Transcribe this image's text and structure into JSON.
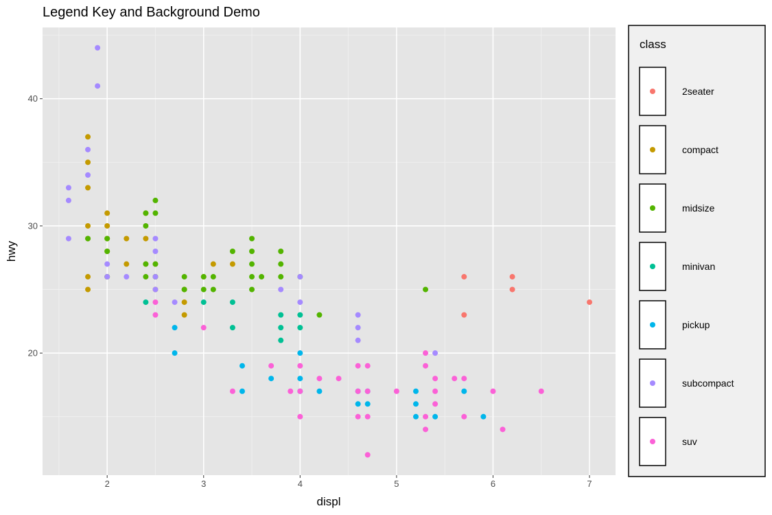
{
  "chart_data": {
    "type": "scatter",
    "title": "Legend Key and Background Demo",
    "xlabel": "displ",
    "ylabel": "hwy",
    "xlim": [
      1.33,
      7.27
    ],
    "ylim": [
      10.4,
      45.6
    ],
    "x_ticks": [
      2,
      3,
      4,
      5,
      6,
      7
    ],
    "y_ticks": [
      20,
      30,
      40
    ],
    "grid": true,
    "legend": {
      "title": "class",
      "position": "right"
    },
    "series": [
      {
        "name": "2seater",
        "color": "#F8766D",
        "points": [
          [
            5.7,
            26
          ],
          [
            5.7,
            23
          ],
          [
            6.2,
            26
          ],
          [
            6.2,
            25
          ],
          [
            7.0,
            24
          ]
        ]
      },
      {
        "name": "compact",
        "color": "#C49A00",
        "points": [
          [
            1.8,
            37
          ],
          [
            1.8,
            35
          ],
          [
            1.8,
            33
          ],
          [
            1.8,
            30
          ],
          [
            1.8,
            29
          ],
          [
            1.8,
            26
          ],
          [
            1.8,
            25
          ],
          [
            2.0,
            31
          ],
          [
            2.0,
            30
          ],
          [
            2.0,
            29
          ],
          [
            2.0,
            28
          ],
          [
            2.0,
            26
          ],
          [
            2.2,
            29
          ],
          [
            2.2,
            27
          ],
          [
            2.4,
            31
          ],
          [
            2.4,
            29
          ],
          [
            2.4,
            27
          ],
          [
            2.5,
            27
          ],
          [
            2.5,
            26
          ],
          [
            2.5,
            25
          ],
          [
            2.8,
            25
          ],
          [
            2.8,
            24
          ],
          [
            2.8,
            23
          ],
          [
            3.0,
            26
          ],
          [
            3.1,
            27
          ],
          [
            3.3,
            27
          ]
        ]
      },
      {
        "name": "midsize",
        "color": "#53B400",
        "points": [
          [
            1.8,
            29
          ],
          [
            2.0,
            29
          ],
          [
            2.0,
            28
          ],
          [
            2.0,
            26
          ],
          [
            2.4,
            31
          ],
          [
            2.4,
            30
          ],
          [
            2.4,
            27
          ],
          [
            2.4,
            26
          ],
          [
            2.5,
            32
          ],
          [
            2.5,
            31
          ],
          [
            2.5,
            27
          ],
          [
            2.5,
            26
          ],
          [
            2.8,
            26
          ],
          [
            2.8,
            25
          ],
          [
            3.0,
            26
          ],
          [
            3.0,
            25
          ],
          [
            3.1,
            26
          ],
          [
            3.1,
            25
          ],
          [
            3.3,
            28
          ],
          [
            3.5,
            29
          ],
          [
            3.5,
            28
          ],
          [
            3.5,
            27
          ],
          [
            3.5,
            26
          ],
          [
            3.5,
            25
          ],
          [
            3.6,
            26
          ],
          [
            3.8,
            28
          ],
          [
            3.8,
            27
          ],
          [
            3.8,
            26
          ],
          [
            4.0,
            26
          ],
          [
            4.2,
            23
          ],
          [
            5.3,
            25
          ]
        ]
      },
      {
        "name": "minivan",
        "color": "#00C094",
        "points": [
          [
            2.4,
            24
          ],
          [
            3.0,
            24
          ],
          [
            3.3,
            24
          ],
          [
            3.3,
            22
          ],
          [
            3.8,
            23
          ],
          [
            3.8,
            22
          ],
          [
            3.8,
            21
          ],
          [
            4.0,
            23
          ],
          [
            4.0,
            22
          ]
        ]
      },
      {
        "name": "pickup",
        "color": "#00B6EB",
        "points": [
          [
            2.7,
            22
          ],
          [
            2.7,
            20
          ],
          [
            3.4,
            19
          ],
          [
            3.4,
            17
          ],
          [
            3.7,
            18
          ],
          [
            4.0,
            20
          ],
          [
            4.0,
            18
          ],
          [
            4.0,
            17
          ],
          [
            4.2,
            17
          ],
          [
            4.6,
            17
          ],
          [
            4.6,
            16
          ],
          [
            4.7,
            17
          ],
          [
            4.7,
            16
          ],
          [
            5.2,
            17
          ],
          [
            5.2,
            16
          ],
          [
            5.2,
            15
          ],
          [
            5.4,
            15
          ],
          [
            5.7,
            17
          ],
          [
            5.9,
            15
          ]
        ]
      },
      {
        "name": "subcompact",
        "color": "#A58AFF",
        "points": [
          [
            1.6,
            33
          ],
          [
            1.6,
            32
          ],
          [
            1.6,
            29
          ],
          [
            1.8,
            36
          ],
          [
            1.8,
            34
          ],
          [
            1.9,
            44
          ],
          [
            1.9,
            41
          ],
          [
            2.0,
            27
          ],
          [
            2.0,
            26
          ],
          [
            2.2,
            26
          ],
          [
            2.5,
            29
          ],
          [
            2.5,
            28
          ],
          [
            2.5,
            26
          ],
          [
            2.5,
            25
          ],
          [
            2.7,
            24
          ],
          [
            3.8,
            25
          ],
          [
            4.0,
            26
          ],
          [
            4.0,
            24
          ],
          [
            4.6,
            23
          ],
          [
            4.6,
            22
          ],
          [
            4.6,
            21
          ],
          [
            5.4,
            20
          ]
        ]
      },
      {
        "name": "suv",
        "color": "#FB61D7",
        "points": [
          [
            2.5,
            24
          ],
          [
            2.5,
            23
          ],
          [
            3.0,
            22
          ],
          [
            3.3,
            17
          ],
          [
            3.7,
            19
          ],
          [
            3.9,
            17
          ],
          [
            4.0,
            19
          ],
          [
            4.0,
            17
          ],
          [
            4.0,
            15
          ],
          [
            4.2,
            18
          ],
          [
            4.4,
            18
          ],
          [
            4.6,
            19
          ],
          [
            4.6,
            17
          ],
          [
            4.6,
            15
          ],
          [
            4.7,
            19
          ],
          [
            4.7,
            17
          ],
          [
            4.7,
            15
          ],
          [
            4.7,
            12
          ],
          [
            5.0,
            17
          ],
          [
            5.3,
            20
          ],
          [
            5.3,
            19
          ],
          [
            5.3,
            15
          ],
          [
            5.3,
            14
          ],
          [
            5.4,
            18
          ],
          [
            5.4,
            17
          ],
          [
            5.4,
            16
          ],
          [
            5.6,
            18
          ],
          [
            5.7,
            18
          ],
          [
            5.7,
            15
          ],
          [
            6.0,
            17
          ],
          [
            6.1,
            14
          ],
          [
            6.5,
            17
          ]
        ]
      }
    ]
  }
}
